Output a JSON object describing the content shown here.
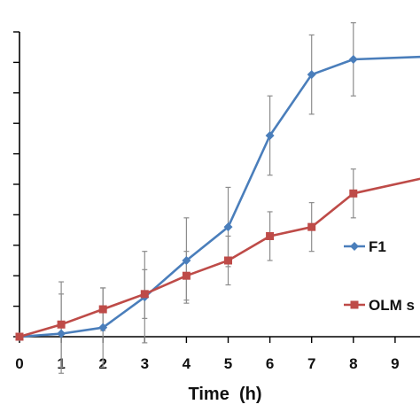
{
  "chart_data": {
    "type": "line",
    "xlabel": "Time  (h)",
    "ylabel": "",
    "title": "",
    "xlim": [
      0,
      10
    ],
    "ylim": [
      0,
      100
    ],
    "xticks": [
      "0",
      "1",
      "2",
      "3",
      "4",
      "5",
      "6",
      "7",
      "8",
      "9"
    ],
    "grid": false,
    "legend_position": "right",
    "series": [
      {
        "name": "F1",
        "color": "#4a7ebb",
        "marker": "diamond",
        "x": [
          0,
          1,
          2,
          3,
          4,
          5,
          6,
          7,
          8,
          10
        ],
        "y": [
          0,
          1,
          3,
          13,
          25,
          36,
          66,
          86,
          91,
          92
        ],
        "error": [
          0,
          13,
          13,
          15,
          14,
          13,
          13,
          13,
          12,
          0
        ]
      },
      {
        "name": "OLM s",
        "color": "#be4b48",
        "marker": "square",
        "x": [
          0,
          1,
          2,
          3,
          4,
          5,
          6,
          7,
          8,
          10
        ],
        "y": [
          0,
          4,
          9,
          14,
          20,
          25,
          33,
          36,
          47,
          53
        ],
        "error": [
          0,
          14,
          7,
          8,
          8,
          8,
          8,
          8,
          8,
          0
        ]
      }
    ]
  }
}
